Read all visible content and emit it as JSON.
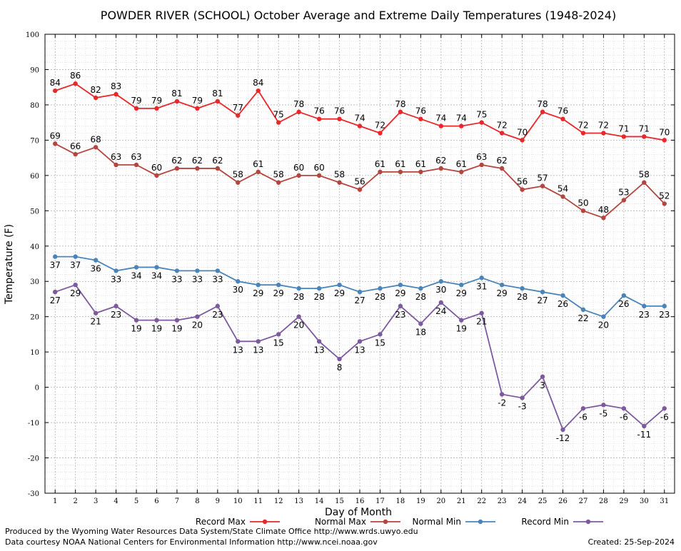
{
  "chart_data": {
    "type": "line",
    "title": "POWDER RIVER (SCHOOL) October Average and Extreme Daily Temperatures (1948-2024)",
    "xlabel": "Day of Month",
    "ylabel": "Temperature (F)",
    "ylim": [
      -30,
      100
    ],
    "yticks": [
      -30,
      -20,
      -10,
      0,
      10,
      20,
      30,
      40,
      50,
      60,
      70,
      80,
      90,
      100
    ],
    "x": [
      1,
      2,
      3,
      4,
      5,
      6,
      7,
      8,
      9,
      10,
      11,
      12,
      13,
      14,
      15,
      16,
      17,
      18,
      19,
      20,
      21,
      22,
      23,
      24,
      25,
      26,
      27,
      28,
      29,
      30,
      31
    ],
    "grid": true,
    "legend_position": "bottom",
    "series": [
      {
        "name": "Record Max",
        "color": "#e8282a",
        "label_pos": "above",
        "values": [
          84,
          86,
          82,
          83,
          79,
          79,
          81,
          79,
          81,
          77,
          84,
          75,
          78,
          76,
          76,
          74,
          72,
          78,
          76,
          74,
          74,
          75,
          72,
          70,
          78,
          76,
          72,
          72,
          71,
          71,
          70
        ]
      },
      {
        "name": "Normal Max",
        "color": "#b5453f",
        "label_pos": "above",
        "values": [
          69,
          66,
          68,
          63,
          63,
          60,
          62,
          62,
          62,
          58,
          61,
          58,
          60,
          60,
          58,
          56,
          61,
          61,
          61,
          62,
          61,
          63,
          62,
          56,
          57,
          54,
          50,
          48,
          53,
          58,
          52
        ]
      },
      {
        "name": "Normal Min",
        "color": "#4a84b8",
        "label_pos": "below",
        "values": [
          37,
          37,
          36,
          33,
          34,
          34,
          33,
          33,
          33,
          30,
          29,
          29,
          28,
          28,
          29,
          27,
          28,
          29,
          28,
          30,
          29,
          31,
          29,
          28,
          27,
          26,
          22,
          20,
          26,
          23,
          23
        ]
      },
      {
        "name": "Record Min",
        "color": "#7d5a9e",
        "label_pos": "below",
        "values": [
          27,
          29,
          21,
          23,
          19,
          19,
          19,
          20,
          23,
          13,
          13,
          15,
          20,
          13,
          8,
          13,
          15,
          23,
          18,
          24,
          19,
          21,
          -2,
          -3,
          3,
          -12,
          -6,
          -5,
          -6,
          -11,
          -6
        ]
      }
    ]
  },
  "footer": {
    "produced_by": "Produced by the Wyoming Water Resources Data System/State Climate Office http://www.wrds.uwyo.edu",
    "data_courtesy": "Data courtesy NOAA National Centers for Environmental Information http://www.ncei.noaa.gov",
    "created": "Created: 25-Sep-2024"
  }
}
